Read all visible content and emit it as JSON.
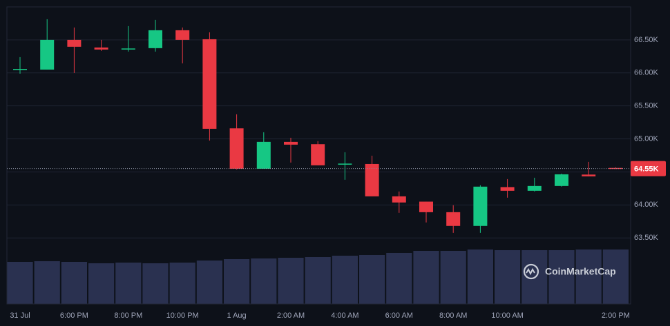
{
  "chart_data": {
    "type": "candlestick",
    "categories": [
      "31 Jul",
      null,
      "6:00 PM",
      null,
      "8:00 PM",
      null,
      "10:00 PM",
      null,
      "1 Aug",
      null,
      "2:00 AM",
      null,
      "4:00 AM",
      null,
      "6:00 AM",
      null,
      "8:00 AM",
      null,
      "10:00 AM",
      null,
      null,
      null,
      "2:00 PM"
    ],
    "open": [
      66050,
      66050,
      66500,
      66385,
      66360,
      66375,
      66646,
      66510,
      65160,
      64548,
      64955,
      64920,
      64610,
      64620,
      64130,
      64050,
      63890,
      63682,
      64270,
      64214,
      64287,
      64460,
      64560
    ],
    "high": [
      66239,
      66813,
      66688,
      66500,
      66709,
      66803,
      66688,
      66615,
      65373,
      65101,
      65018,
      64966,
      64798,
      64746,
      64204,
      64050,
      63995,
      64298,
      64391,
      64412,
      64475,
      64652,
      64570
    ],
    "low": [
      65989,
      66050,
      65999,
      66333,
      66323,
      66323,
      66145,
      64976,
      64538,
      64548,
      64642,
      64600,
      64381,
      64130,
      63880,
      63734,
      63577,
      63577,
      64110,
      64204,
      64277,
      64433,
      64545
    ],
    "close": [
      66060,
      66500,
      66396,
      66354,
      66370,
      66646,
      66500,
      65153,
      64548,
      64955,
      64913,
      64600,
      64626,
      64130,
      64037,
      63890,
      63682,
      64277,
      64214,
      64287,
      64464,
      64433,
      64550
    ],
    "volume": [
      61,
      62,
      61,
      59,
      60,
      59,
      60,
      63,
      65,
      66,
      67,
      68,
      70,
      71,
      74,
      77,
      77,
      79,
      78,
      78,
      78,
      79,
      79
    ],
    "up_color": "#16c784",
    "down_color": "#ea3943",
    "volume_color": "#2a3150",
    "ylim": [
      62500,
      67000
    ],
    "yticks": [
      {
        "value": 63500,
        "label": "63.50K"
      },
      {
        "value": 64000,
        "label": "64.00K"
      },
      {
        "value": 64500,
        "label": "64.50K"
      },
      {
        "value": 65000,
        "label": "65.00K"
      },
      {
        "value": 65500,
        "label": "65.50K"
      },
      {
        "value": 66000,
        "label": "66.00K"
      },
      {
        "value": 66500,
        "label": "66.50K"
      }
    ],
    "grid": true,
    "last_price": 64550,
    "last_price_label": "64.55K",
    "watermark": "CoinMarketCap"
  }
}
